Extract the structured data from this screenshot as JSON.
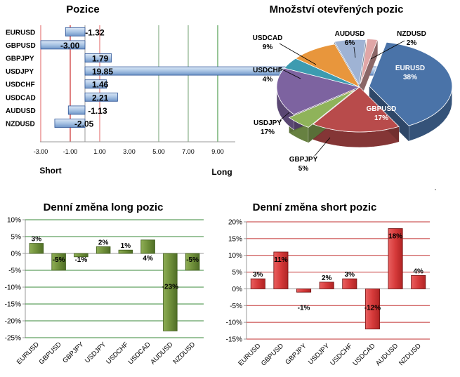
{
  "chart_data": [
    {
      "type": "bar",
      "orientation": "horizontal",
      "title": "Pozice",
      "categories": [
        "EURUSD",
        "GBPUSD",
        "GBPJPY",
        "USDJPY",
        "USDCHF",
        "USDCAD",
        "AUDUSD",
        "NZDUSD"
      ],
      "values": [
        -1.32,
        -3.0,
        1.79,
        19.85,
        1.46,
        2.21,
        -1.13,
        -2.05
      ],
      "value_labels": [
        "-1.32",
        "-3.00",
        "1.79",
        "19.85",
        "1.46",
        "2.21",
        "-1.13",
        "-2.05"
      ],
      "xticks": [
        "-3.00",
        "-1.00",
        "1.00",
        "3.00",
        "5.00",
        "7.00",
        "9.00"
      ],
      "xtick_values": [
        -3,
        -1,
        1,
        3,
        5,
        7,
        9
      ],
      "xlim": [
        -3.3,
        10.2
      ],
      "left_label": "Short",
      "right_label": "Long",
      "reference_lines": [
        {
          "value": -3,
          "color": "#e06060"
        },
        {
          "value": -1,
          "color": "#c00000"
        },
        {
          "value": 1,
          "color": "#e06060"
        },
        {
          "value": 5,
          "color": "#70a070"
        },
        {
          "value": 7,
          "color": "#70a070"
        },
        {
          "value": 9,
          "color": "#2e8b2e"
        }
      ],
      "bar_color": "#a9c4e4",
      "bar_edge": "#2f5597"
    },
    {
      "type": "pie",
      "title": "Množství otevřených pozic",
      "slices": [
        {
          "label": "EURUSD",
          "value": 38,
          "text": "38%",
          "color": "#4a73a8"
        },
        {
          "label": "GBPUSD",
          "value": 17,
          "text": "17%",
          "color": "#b84b4b"
        },
        {
          "label": "GBPJPY",
          "value": 5,
          "text": "5%",
          "color": "#8fb35a"
        },
        {
          "label": "USDJPY",
          "value": 17,
          "text": "17%",
          "color": "#7d63a0"
        },
        {
          "label": "USDCHF",
          "value": 4,
          "text": "4%",
          "color": "#3d9bb0"
        },
        {
          "label": "USDCAD",
          "value": 9,
          "text": "9%",
          "color": "#e8963c"
        },
        {
          "label": "AUDUSD",
          "value": 6,
          "text": "6%",
          "color": "#9fb3d4"
        },
        {
          "label": "NZDUSD",
          "value": 2,
          "text": "2%",
          "color": "#e0a6a6"
        }
      ]
    },
    {
      "type": "bar",
      "title": "Denní změna long pozic",
      "categories": [
        "EURUSD",
        "GBPUSD",
        "GBPJPY",
        "USDJPY",
        "USDCHF",
        "USDCAD",
        "AUDUSD",
        "NZDUSD"
      ],
      "values": [
        3,
        -5,
        -1,
        2,
        1,
        4,
        -23,
        -5
      ],
      "value_labels": [
        "3%",
        "-5%",
        "-1%",
        "2%",
        "1%",
        "4%",
        "-23%",
        "-5%"
      ],
      "yticks": [
        "10%",
        "5%",
        "0%",
        "-5%",
        "-10%",
        "-15%",
        "-20%",
        "-25%"
      ],
      "ytick_values": [
        10,
        5,
        0,
        -5,
        -10,
        -15,
        -20,
        -25
      ],
      "ylim": [
        -25,
        10
      ],
      "bar_color": "#6f8f3a",
      "bar_edge": "#3d5a1a",
      "grid_color": "#3a8a3a"
    },
    {
      "type": "bar",
      "title": "Denní změna short pozic",
      "categories": [
        "EURUSD",
        "GBPUSD",
        "GBPJPY",
        "USDJPY",
        "USDCHF",
        "USDCAD",
        "AUDUSD",
        "NZDUSD"
      ],
      "values": [
        3,
        11,
        -1,
        2,
        3,
        -12,
        18,
        4
      ],
      "value_labels": [
        "3%",
        "11%",
        "-1%",
        "2%",
        "3%",
        "-12%",
        "18%",
        "4%"
      ],
      "yticks": [
        "20%",
        "15%",
        "10%",
        "5%",
        "0%",
        "-5%",
        "-10%",
        "-15%"
      ],
      "ytick_values": [
        20,
        15,
        10,
        5,
        0,
        -5,
        -10,
        -15
      ],
      "ylim": [
        -15,
        20
      ],
      "bar_color": "#d63a3a",
      "bar_edge": "#6e1010",
      "grid_color": "#c23030"
    }
  ]
}
